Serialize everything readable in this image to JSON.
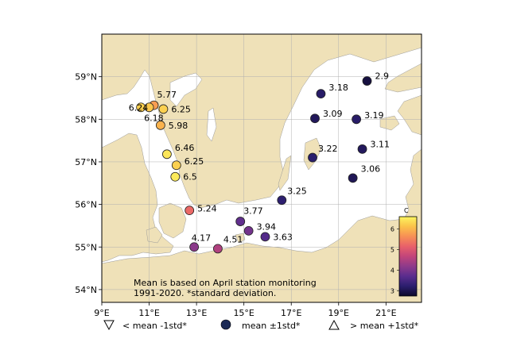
{
  "map": {
    "lon_range": [
      9,
      22.5
    ],
    "lat_range": [
      53.7,
      60.0
    ],
    "land_color": "#efe1b8",
    "sea_color": "#ffffff",
    "lon_ticks": [
      {
        "value": 9,
        "label": "9°E"
      },
      {
        "value": 11,
        "label": "11°E"
      },
      {
        "value": 13,
        "label": "13°E"
      },
      {
        "value": 15,
        "label": "15°E"
      },
      {
        "value": 17,
        "label": "17°E"
      },
      {
        "value": 19,
        "label": "19°E"
      },
      {
        "value": 21,
        "label": "21°E"
      }
    ],
    "lat_ticks": [
      {
        "value": 54,
        "label": "54°N"
      },
      {
        "value": 55,
        "label": "55°N"
      },
      {
        "value": 56,
        "label": "56°N"
      },
      {
        "value": 57,
        "label": "57°N"
      },
      {
        "value": 58,
        "label": "58°N"
      },
      {
        "value": 59,
        "label": "59°N"
      }
    ],
    "note_lines": [
      "Mean is based on April station monitoring",
      "1991-2020. *standard deviation."
    ]
  },
  "chart_data": {
    "type": "scatter",
    "x_unit": "longitude °E",
    "y_unit": "latitude °N",
    "color_variable": "C",
    "points": [
      {
        "lon": 11.2,
        "lat": 58.33,
        "value": 5.77,
        "label": "5.77",
        "lx": 0.0,
        "ly": 0.25
      },
      {
        "lon": 10.65,
        "lat": 58.28,
        "value": 6.24,
        "label": "6.24",
        "lx": -0.65,
        "ly": 0.0
      },
      {
        "lon": 11.0,
        "lat": 58.28,
        "value": 6.18,
        "label": "6.18",
        "lx": -0.35,
        "ly": -0.25
      },
      {
        "lon": 11.6,
        "lat": 58.24,
        "value": 6.25,
        "label": "6.25",
        "lx": 0.2,
        "ly": 0.0
      },
      {
        "lon": 11.48,
        "lat": 57.86,
        "value": 5.98,
        "label": "5.98",
        "lx": 0.2,
        "ly": 0.0
      },
      {
        "lon": 11.75,
        "lat": 57.18,
        "value": 6.46,
        "label": "6.46",
        "lx": 0.2,
        "ly": 0.15
      },
      {
        "lon": 12.15,
        "lat": 56.92,
        "value": 6.25,
        "label": "6.25",
        "lx": 0.2,
        "ly": 0.1
      },
      {
        "lon": 12.1,
        "lat": 56.65,
        "value": 6.5,
        "label": "6.5",
        "lx": 0.2,
        "ly": 0.0
      },
      {
        "lon": 12.7,
        "lat": 55.86,
        "value": 5.24,
        "label": "5.24",
        "lx": 0.2,
        "ly": 0.05
      },
      {
        "lon": 14.85,
        "lat": 55.6,
        "value": 3.77,
        "label": "3.77",
        "lx": 0.0,
        "ly": 0.25
      },
      {
        "lon": 15.2,
        "lat": 55.38,
        "value": 3.94,
        "label": "3.94",
        "lx": 0.2,
        "ly": 0.1
      },
      {
        "lon": 15.9,
        "lat": 55.24,
        "value": 3.63,
        "label": "3.63",
        "lx": 0.2,
        "ly": 0.0
      },
      {
        "lon": 12.9,
        "lat": 55.0,
        "value": 4.17,
        "label": "4.17",
        "lx": -0.25,
        "ly": 0.22
      },
      {
        "lon": 13.9,
        "lat": 54.96,
        "value": 4.51,
        "label": "4.51",
        "lx": 0.1,
        "ly": 0.22
      },
      {
        "lon": 16.6,
        "lat": 56.1,
        "value": 3.25,
        "label": "3.25",
        "lx": 0.1,
        "ly": 0.22
      },
      {
        "lon": 17.9,
        "lat": 57.1,
        "value": 3.22,
        "label": "3.22",
        "lx": 0.1,
        "ly": 0.22
      },
      {
        "lon": 18.0,
        "lat": 58.02,
        "value": 3.09,
        "label": "3.09",
        "lx": 0.2,
        "ly": 0.12
      },
      {
        "lon": 18.25,
        "lat": 58.6,
        "value": 3.18,
        "label": "3.18",
        "lx": 0.2,
        "ly": 0.15
      },
      {
        "lon": 20.2,
        "lat": 58.9,
        "value": 2.9,
        "label": "2.9",
        "lx": 0.2,
        "ly": 0.12
      },
      {
        "lon": 19.75,
        "lat": 58.0,
        "value": 3.19,
        "label": "3.19",
        "lx": 0.2,
        "ly": 0.1
      },
      {
        "lon": 20.0,
        "lat": 57.3,
        "value": 3.11,
        "label": "3.11",
        "lx": 0.2,
        "ly": 0.12
      },
      {
        "lon": 19.6,
        "lat": 56.62,
        "value": 3.06,
        "label": "3.06",
        "lx": 0.2,
        "ly": 0.22
      }
    ]
  },
  "colorbar": {
    "title": "C",
    "range": [
      2.75,
      6.6
    ],
    "ticks": [
      {
        "value": 3,
        "label": "3"
      },
      {
        "value": 4,
        "label": "4"
      },
      {
        "value": 5,
        "label": "5"
      },
      {
        "value": 6,
        "label": "6"
      }
    ],
    "stops": [
      "#0d0a2b",
      "#2b1e6e",
      "#5b2d8e",
      "#8e3a8a",
      "#c2457a",
      "#e8606a",
      "#f78f55",
      "#fbc24a",
      "#fcf55f"
    ]
  },
  "legend": {
    "items": [
      {
        "symbol": "triangle-down",
        "label": "< mean -1std*"
      },
      {
        "symbol": "circle",
        "label": "mean ±1std*"
      },
      {
        "symbol": "triangle-up",
        "label": "> mean +1std*"
      }
    ],
    "circle_color": "#1c2a55"
  }
}
